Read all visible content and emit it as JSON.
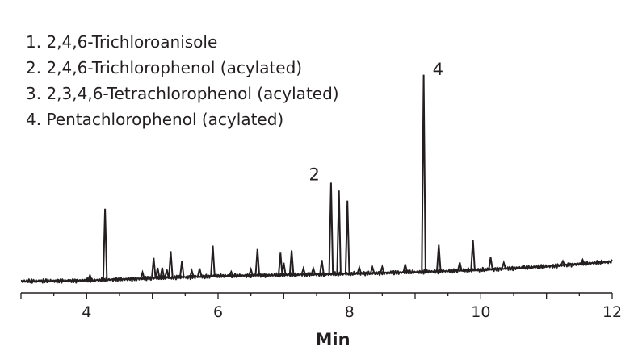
{
  "chart_data": {
    "type": "line",
    "xlabel": "Min",
    "ylabel": "",
    "xlim": [
      3,
      12
    ],
    "ylim": [
      0,
      100
    ],
    "x_ticks": [
      4,
      6,
      8,
      10,
      12
    ],
    "grid": false,
    "legend_position": "top-left",
    "line_color": "#231f20",
    "legend_entries": [
      {
        "number": "1.",
        "label": "2,4,6-Trichloroanisole"
      },
      {
        "number": "2.",
        "label": "2,4,6-Trichlorophenol (acylated)"
      },
      {
        "number": "3.",
        "label": "2,3,4,6-Tetrachlorophenol (acylated)"
      },
      {
        "number": "4.",
        "label": "Pentachlorophenol (acylated)"
      }
    ],
    "peak_labels": [
      {
        "text": "2",
        "x": 7.72,
        "y": 47
      },
      {
        "text": "4",
        "x": 9.13,
        "y": 100
      }
    ],
    "baseline": [
      [
        3.0,
        0.5
      ],
      [
        4.0,
        0.9
      ],
      [
        5.0,
        2.0
      ],
      [
        6.0,
        3.1
      ],
      [
        7.0,
        3.6
      ],
      [
        8.0,
        4.2
      ],
      [
        9.0,
        5.0
      ],
      [
        10.0,
        6.1
      ],
      [
        11.0,
        7.8
      ],
      [
        12.0,
        10.2
      ]
    ],
    "peaks": [
      {
        "x": 4.05,
        "h": 2.5
      },
      {
        "x": 4.28,
        "h": 35
      },
      {
        "x": 4.85,
        "h": 3
      },
      {
        "x": 5.02,
        "h": 10
      },
      {
        "x": 5.08,
        "h": 5
      },
      {
        "x": 5.15,
        "h": 5
      },
      {
        "x": 5.22,
        "h": 4
      },
      {
        "x": 5.28,
        "h": 13
      },
      {
        "x": 5.45,
        "h": 8
      },
      {
        "x": 5.6,
        "h": 3
      },
      {
        "x": 5.72,
        "h": 4
      },
      {
        "x": 5.92,
        "h": 15
      },
      {
        "x": 6.2,
        "h": 2
      },
      {
        "x": 6.5,
        "h": 3
      },
      {
        "x": 6.6,
        "h": 13
      },
      {
        "x": 6.95,
        "h": 11
      },
      {
        "x": 7.0,
        "h": 6
      },
      {
        "x": 7.12,
        "h": 12
      },
      {
        "x": 7.3,
        "h": 3
      },
      {
        "x": 7.45,
        "h": 3
      },
      {
        "x": 7.58,
        "h": 7
      },
      {
        "x": 7.72,
        "h": 45
      },
      {
        "x": 7.84,
        "h": 41
      },
      {
        "x": 7.97,
        "h": 36
      },
      {
        "x": 8.15,
        "h": 3
      },
      {
        "x": 8.35,
        "h": 3
      },
      {
        "x": 8.5,
        "h": 3
      },
      {
        "x": 8.85,
        "h": 4
      },
      {
        "x": 9.13,
        "h": 97
      },
      {
        "x": 9.36,
        "h": 13
      },
      {
        "x": 9.68,
        "h": 4
      },
      {
        "x": 9.88,
        "h": 15
      },
      {
        "x": 10.15,
        "h": 6
      },
      {
        "x": 10.35,
        "h": 3
      },
      {
        "x": 11.25,
        "h": 2
      },
      {
        "x": 11.55,
        "h": 2
      }
    ]
  }
}
